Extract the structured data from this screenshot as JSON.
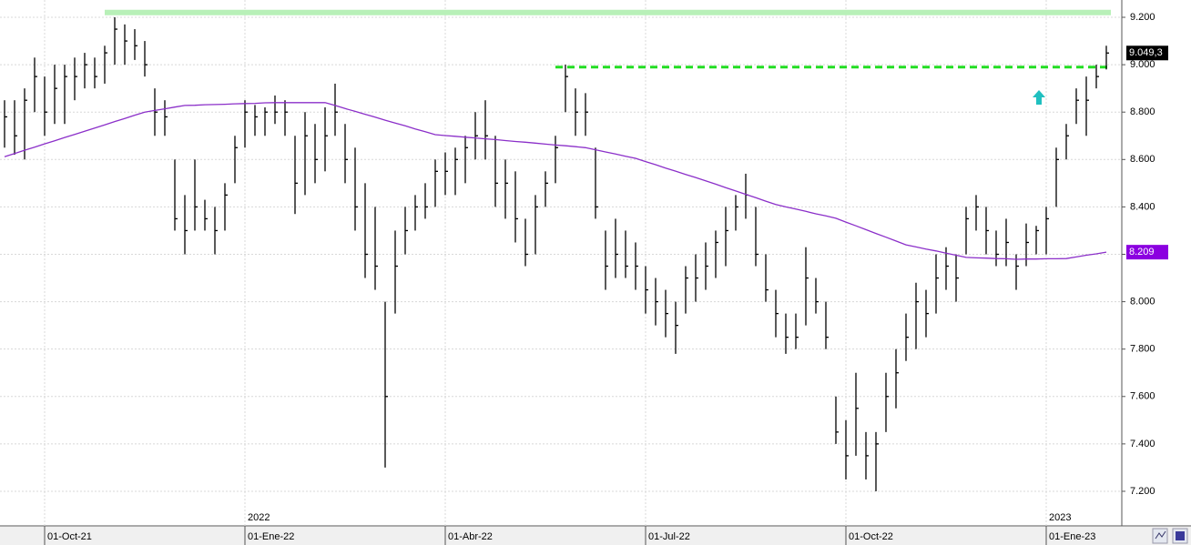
{
  "chart_data": {
    "type": "ohlc",
    "categories": [
      null,
      null,
      null,
      null,
      "01-Oct-21",
      null,
      null,
      null,
      null,
      null,
      null,
      null,
      null,
      null,
      null,
      null,
      null,
      null,
      null,
      null,
      null,
      null,
      null,
      null,
      "01-Ene-22",
      null,
      null,
      null,
      null,
      null,
      null,
      null,
      null,
      null,
      null,
      null,
      null,
      null,
      null,
      null,
      null,
      null,
      null,
      null,
      "01-Abr-22",
      null,
      null,
      null,
      null,
      null,
      null,
      null,
      null,
      null,
      null,
      null,
      null,
      null,
      null,
      null,
      null,
      null,
      null,
      null,
      "01-Jul-22",
      null,
      null,
      null,
      null,
      null,
      null,
      null,
      null,
      null,
      null,
      null,
      null,
      null,
      null,
      null,
      null,
      null,
      null,
      null,
      "01-Oct-22",
      null,
      null,
      null,
      null,
      null,
      null,
      null,
      null,
      null,
      null,
      null,
      null,
      null,
      null,
      null,
      null,
      null,
      null,
      null,
      "01-Ene-23",
      null,
      null,
      null,
      null,
      null,
      null
    ],
    "year_labels": [
      {
        "label": "2022",
        "category": "01-Ene-22"
      },
      {
        "label": "2023",
        "category": "01-Ene-23"
      }
    ],
    "ohlc": {
      "color": "#000000",
      "high": [
        8850,
        8850,
        8900,
        9030,
        8950,
        9000,
        9000,
        9030,
        9050,
        9030,
        9080,
        9200,
        9170,
        9150,
        9100,
        8900,
        8850,
        8600,
        8450,
        8600,
        8430,
        8400,
        8500,
        8700,
        8850,
        8830,
        8820,
        8870,
        8850,
        8700,
        8800,
        8750,
        8820,
        8920,
        8750,
        8650,
        8500,
        8400,
        8000,
        8300,
        8400,
        8450,
        8500,
        8600,
        8630,
        8650,
        8700,
        8800,
        8850,
        8700,
        8600,
        8550,
        8350,
        8450,
        8550,
        8700,
        9000,
        8900,
        8880,
        8650,
        8300,
        8350,
        8300,
        8250,
        8150,
        8100,
        8050,
        8000,
        8150,
        8200,
        8250,
        8300,
        8400,
        8450,
        8540,
        8400,
        8200,
        8050,
        7950,
        7950,
        8230,
        8100,
        8000,
        7600,
        7500,
        7700,
        7450,
        7450,
        7700,
        7800,
        7950,
        8080,
        8050,
        8200,
        8230,
        8200,
        8400,
        8450,
        8400,
        8300,
        8350,
        8200,
        8330,
        8320,
        8400,
        8650,
        8750,
        8900,
        8950,
        9000,
        9080
      ],
      "low": [
        8650,
        8620,
        8600,
        8800,
        8700,
        8750,
        8750,
        8850,
        8900,
        8900,
        8920,
        9000,
        9000,
        9020,
        8950,
        8700,
        8700,
        8300,
        8200,
        8300,
        8300,
        8200,
        8300,
        8500,
        8650,
        8700,
        8700,
        8750,
        8700,
        8370,
        8450,
        8500,
        8550,
        8700,
        8500,
        8300,
        8100,
        8050,
        7300,
        7950,
        8200,
        8300,
        8350,
        8400,
        8450,
        8450,
        8500,
        8600,
        8600,
        8400,
        8350,
        8250,
        8150,
        8200,
        8400,
        8500,
        8800,
        8700,
        8700,
        8350,
        8050,
        8100,
        8100,
        8050,
        7950,
        7900,
        7850,
        7780,
        7950,
        8000,
        8050,
        8100,
        8150,
        8300,
        8350,
        8150,
        8000,
        7850,
        7780,
        7800,
        7900,
        7950,
        7800,
        7400,
        7250,
        7350,
        7250,
        7200,
        7450,
        7550,
        7750,
        7800,
        7850,
        7950,
        8050,
        8000,
        8200,
        8300,
        8200,
        8150,
        8150,
        8050,
        8150,
        8200,
        8200,
        8400,
        8600,
        8750,
        8700,
        8900,
        8980
      ],
      "close": [
        8780,
        8700,
        8850,
        8950,
        8800,
        8900,
        8950,
        8950,
        9000,
        8950,
        9050,
        9150,
        9100,
        9080,
        9000,
        8800,
        8780,
        8350,
        8300,
        8400,
        8350,
        8300,
        8450,
        8650,
        8800,
        8780,
        8800,
        8800,
        8800,
        8500,
        8700,
        8600,
        8700,
        8800,
        8600,
        8400,
        8200,
        8150,
        7600,
        8150,
        8300,
        8400,
        8400,
        8550,
        8550,
        8600,
        8650,
        8700,
        8700,
        8500,
        8500,
        8350,
        8200,
        8400,
        8500,
        8650,
        8950,
        8800,
        8800,
        8400,
        8150,
        8200,
        8150,
        8150,
        8050,
        8000,
        7950,
        7900,
        8100,
        8100,
        8150,
        8250,
        8300,
        8400,
        8450,
        8200,
        8050,
        7950,
        7850,
        7850,
        8100,
        8000,
        7850,
        7450,
        7350,
        7550,
        7350,
        7400,
        7600,
        7700,
        7850,
        8000,
        7950,
        8100,
        8150,
        8100,
        8350,
        8400,
        8300,
        8200,
        8250,
        8150,
        8250,
        8300,
        8350,
        8600,
        8700,
        8850,
        8850,
        8950,
        9049.3
      ]
    },
    "moving_average": {
      "color": "#8b2fc9",
      "values": [
        8612,
        8625,
        8639,
        8652,
        8666,
        8679,
        8693,
        8706,
        8719,
        8733,
        8746,
        8760,
        8773,
        8787,
        8800,
        8807,
        8814,
        8821,
        8828,
        8829,
        8831,
        8832,
        8833,
        8835,
        8836,
        8837,
        8839,
        8840,
        8840,
        8840,
        8840,
        8840,
        8840,
        8828,
        8815,
        8803,
        8791,
        8779,
        8766,
        8754,
        8742,
        8729,
        8717,
        8705,
        8701,
        8698,
        8694,
        8691,
        8687,
        8684,
        8680,
        8676,
        8673,
        8669,
        8665,
        8661,
        8658,
        8654,
        8650,
        8641,
        8632,
        8623,
        8614,
        8605,
        8591,
        8578,
        8564,
        8551,
        8537,
        8524,
        8510,
        8496,
        8481,
        8467,
        8453,
        8439,
        8424,
        8410,
        8400,
        8391,
        8381,
        8371,
        8362,
        8352,
        8336,
        8320,
        8304,
        8288,
        8272,
        8256,
        8240,
        8231,
        8222,
        8214,
        8205,
        8196,
        8187,
        8185,
        8184,
        8182,
        8181,
        8179,
        8180,
        8180,
        8181,
        8181,
        8182,
        8189,
        8196,
        8202,
        8209
      ]
    },
    "hlines": [
      {
        "value": 9220,
        "color": "#b8f0b8",
        "style": "solid",
        "from_index": 10
      },
      {
        "value": 8990,
        "color": "#22dd22",
        "style": "dashed",
        "from_index": 55
      }
    ],
    "last_price": {
      "value": 9049.3,
      "label": "9.049,3",
      "color": "#000000"
    },
    "ma_last": {
      "value": 8209,
      "label": "8.209",
      "color": "#8b00e0"
    },
    "ylim": [
      7054,
      9273
    ],
    "yticks": [
      {
        "value": 7200,
        "label": "7.200"
      },
      {
        "value": 7400,
        "label": "7.400"
      },
      {
        "value": 7600,
        "label": "7.600"
      },
      {
        "value": 7800,
        "label": "7.800"
      },
      {
        "value": 8000,
        "label": "8.000"
      },
      {
        "value": 8200,
        "label": "8.200"
      },
      {
        "value": 8400,
        "label": "8.400"
      },
      {
        "value": 8600,
        "label": "8.600"
      },
      {
        "value": 8800,
        "label": "8.800"
      },
      {
        "value": 9000,
        "label": "9.000"
      },
      {
        "value": 9200,
        "label": "9.200"
      }
    ],
    "grid": true
  }
}
